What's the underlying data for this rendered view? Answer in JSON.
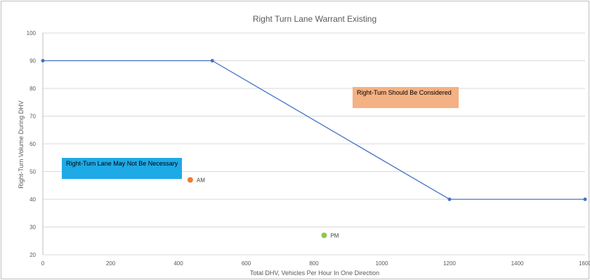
{
  "chart_data": {
    "type": "line",
    "title": "Right Turn Lane Warrant Existing",
    "xlabel": "Total DHV, Vehicles Per Hour In One Direction",
    "ylabel": "Right-Turn Volume During DHV",
    "xlim": [
      0,
      1600
    ],
    "ylim": [
      20,
      100
    ],
    "x_ticks": [
      0,
      200,
      400,
      600,
      800,
      1000,
      1200,
      1400,
      1600
    ],
    "y_ticks": [
      20,
      30,
      40,
      50,
      60,
      70,
      80,
      90,
      100
    ],
    "grid": "horizontal",
    "series": [
      {
        "type": "line",
        "color": "#4472c4",
        "points": [
          [
            0,
            90
          ],
          [
            500,
            90
          ],
          [
            1200,
            40
          ],
          [
            1600,
            40
          ]
        ]
      },
      {
        "type": "scatter",
        "name": "AM",
        "color": "#ed7d31",
        "points": [
          [
            435,
            47
          ]
        ]
      },
      {
        "type": "scatter",
        "name": "PM",
        "color": "#8fc550",
        "points": [
          [
            830,
            27
          ]
        ]
      }
    ],
    "annotations": [
      {
        "text": "Right-Turn Should Be Considered",
        "color": "#f4b183"
      },
      {
        "text": "Right-Turn Lane May Not Be Necessary",
        "color": "#1eaae6"
      }
    ]
  }
}
